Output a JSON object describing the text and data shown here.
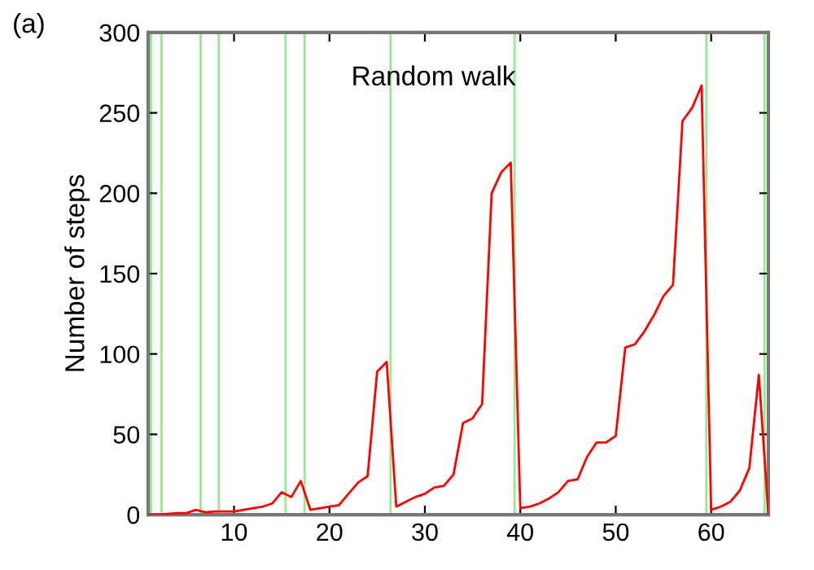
{
  "chart_data": {
    "type": "line",
    "ylabel": "Number of steps",
    "annotations": [
      "(a)",
      "Random walk"
    ],
    "x": [
      1,
      2,
      3,
      4,
      5,
      6,
      7,
      8,
      9,
      10,
      11,
      12,
      13,
      14,
      15,
      16,
      17,
      18,
      19,
      20,
      21,
      22,
      23,
      24,
      25,
      26,
      27,
      28,
      29,
      30,
      31,
      32,
      33,
      34,
      35,
      36,
      37,
      38,
      39,
      40,
      41,
      42,
      43,
      44,
      45,
      46,
      47,
      48,
      49,
      50,
      51,
      52,
      53,
      54,
      55,
      56,
      57,
      58,
      59,
      60,
      61,
      62,
      63,
      64,
      65,
      66
    ],
    "series": [
      {
        "color": "#ff0000",
        "values": [
          0,
          0,
          0.5,
          1,
          1,
          3,
          1.5,
          2,
          2,
          2,
          3,
          4,
          5,
          7,
          14,
          11,
          21,
          3,
          4,
          5,
          6,
          13,
          20,
          24,
          89,
          95,
          5,
          8,
          11,
          13,
          17,
          18,
          25,
          57,
          60,
          69,
          200,
          213,
          219,
          4,
          5,
          7,
          10,
          14,
          21,
          22,
          36,
          45,
          45,
          49,
          104,
          106,
          114,
          124,
          136,
          143,
          245,
          253,
          267,
          3,
          5,
          8,
          15,
          29,
          87,
          0
        ]
      }
    ],
    "ref_lines": [
      {
        "axis": "x",
        "value": 1.3,
        "color": "#90ee90"
      },
      {
        "axis": "x",
        "value": 2.4,
        "color": "#90ee90"
      },
      {
        "axis": "x",
        "value": 6.5,
        "color": "#90ee90"
      },
      {
        "axis": "x",
        "value": 8.4,
        "color": "#90ee90"
      },
      {
        "axis": "x",
        "value": 15.4,
        "color": "#90ee90"
      },
      {
        "axis": "x",
        "value": 17.4,
        "color": "#90ee90"
      },
      {
        "axis": "x",
        "value": 26.4,
        "color": "#90ee90"
      },
      {
        "axis": "x",
        "value": 39.4,
        "color": "#90ee90"
      },
      {
        "axis": "x",
        "value": 59.5,
        "color": "#90ee90"
      },
      {
        "axis": "x",
        "value": 65.6,
        "color": "#90ee90"
      }
    ],
    "xlim": [
      1,
      66
    ],
    "xticks": [
      10,
      20,
      30,
      40,
      50,
      60
    ],
    "ylim": [
      0,
      300
    ],
    "yticks": [
      0,
      50,
      100,
      150,
      200,
      250,
      300
    ],
    "grid": false,
    "legend": false,
    "marker": "none",
    "line_style": "solid"
  }
}
